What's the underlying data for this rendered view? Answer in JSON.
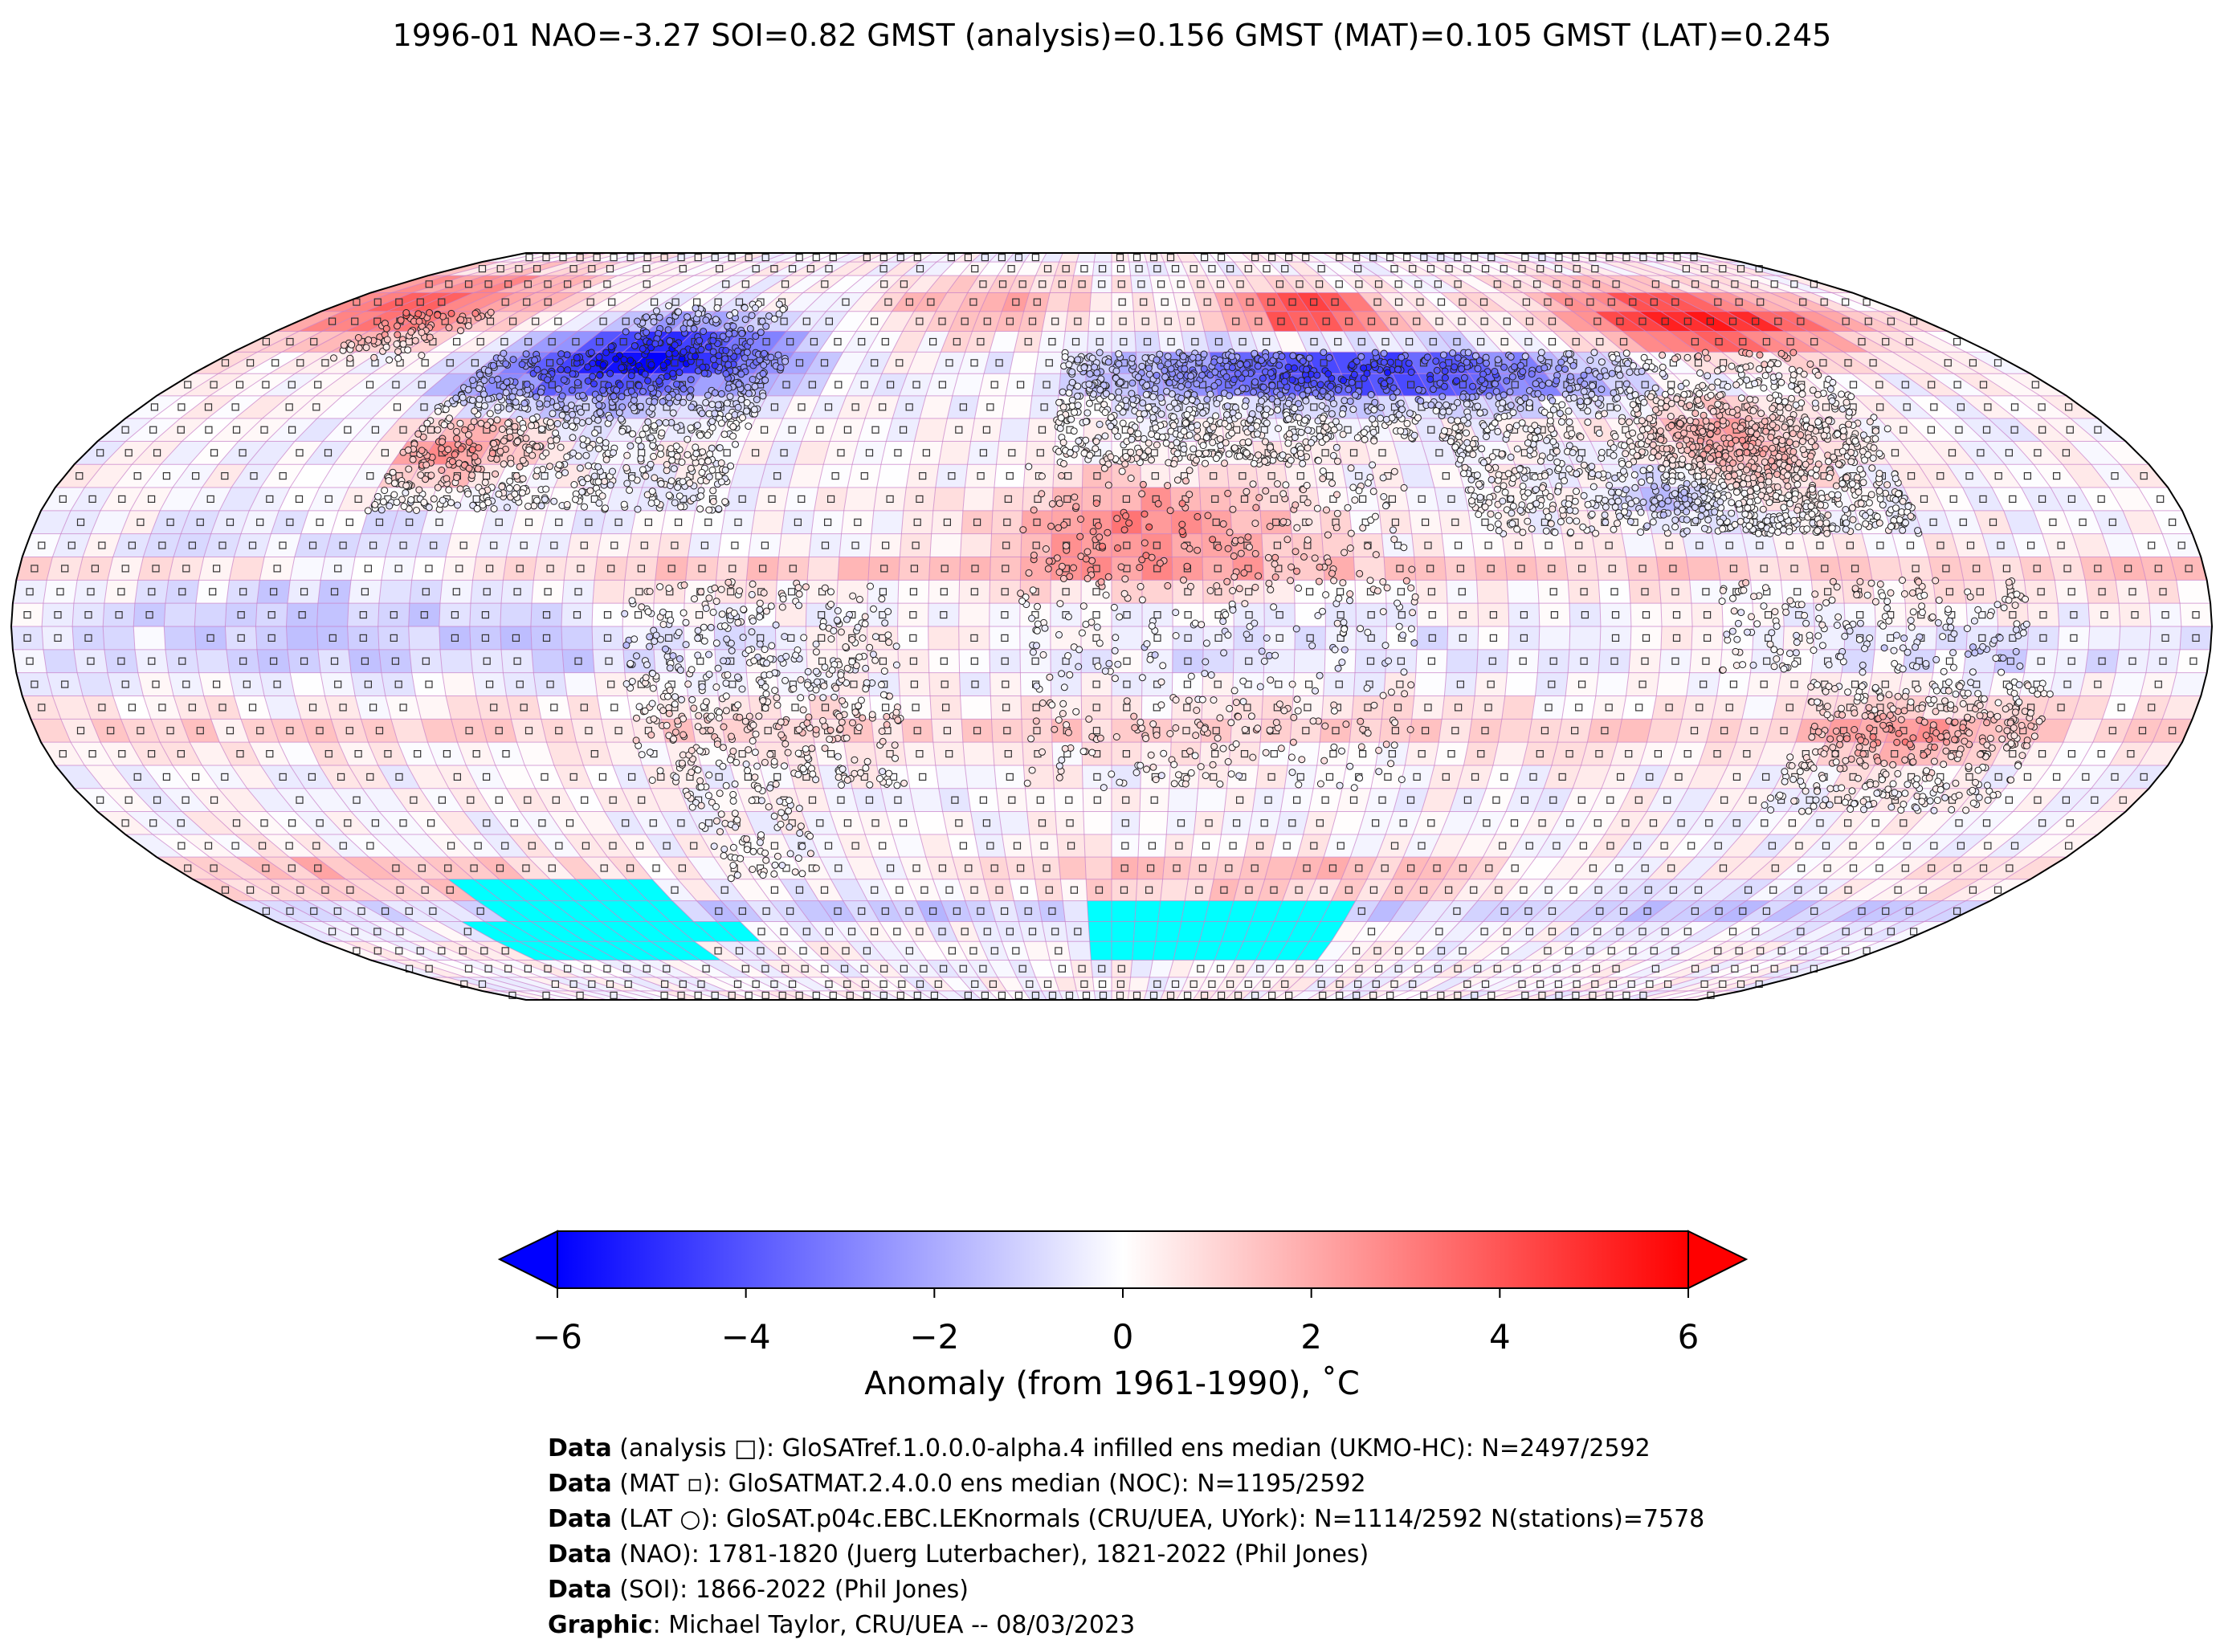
{
  "title": "1996-01 NAO=-3.27 SOI=0.82 GMST (analysis)=0.156 GMST (MAT)=0.105 GMST (LAT)=0.245",
  "colorbar": {
    "label": "Anomaly (from 1961-1990), ˚C",
    "ticks": [
      "−6",
      "−4",
      "−2",
      "0",
      "2",
      "4",
      "6"
    ],
    "tick_values": [
      -6,
      -4,
      -2,
      0,
      2,
      4,
      6
    ],
    "min": -6,
    "max": 6,
    "extend": "both",
    "colors": {
      "low": "#0000ff",
      "mid": "#ffffff",
      "high": "#ff0000"
    }
  },
  "missing_color": "#00ffff",
  "grid_color": "#c77fc8",
  "credits": [
    {
      "bold": "Data",
      "text": " (analysis □): GloSATref.1.0.0.0-alpha.4 infilled ens median (UKMO-HC): N=2497/2592"
    },
    {
      "bold": "Data",
      "text": " (MAT ▫): GloSATMAT.2.4.0.0 ens median (NOC): N=1195/2592"
    },
    {
      "bold": "Data",
      "text": " (LAT ○): GloSAT.p04c.EBC.LEKnormals (CRU/UEA, UYork): N=1114/2592 N(stations)=7578"
    },
    {
      "bold": "Data",
      "text": " (NAO): 1781-1820 (Juerg Luterbacher), 1821-2022 (Phil Jones)"
    },
    {
      "bold": "Data",
      "text": " (SOI): 1866-2022 (Phil Jones)"
    },
    {
      "bold": "Graphic",
      "text": ": Michael Taylor, CRU/UEA -- 08/03/2023"
    }
  ]
}
